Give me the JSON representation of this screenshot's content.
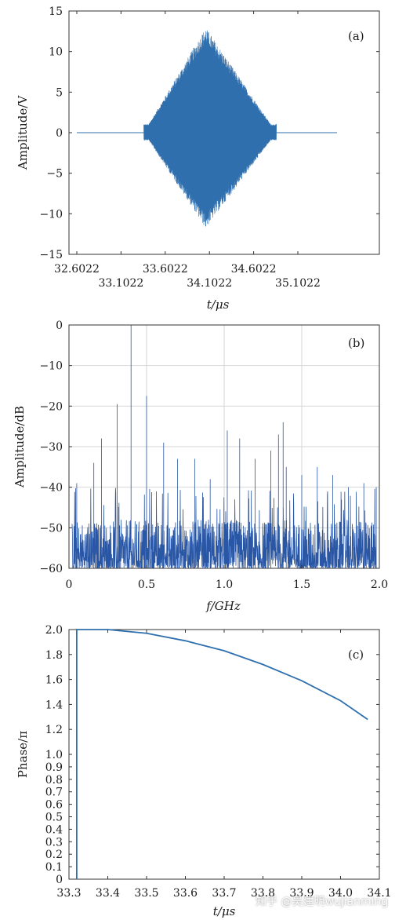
{
  "chart_data": [
    {
      "type": "line",
      "panel_label": "(a)",
      "xlabel": "t/μs",
      "ylabel": "Amplitude/V",
      "xlim": [
        32.6022,
        35.6022
      ],
      "ylim": [
        -15,
        15
      ],
      "xticks_top": [
        "32.6022",
        "33.6022",
        "34.6022"
      ],
      "xticks_bottom": [
        "33.1022",
        "34.1022",
        "35.1022"
      ],
      "yticks": [
        -15,
        -10,
        -5,
        0,
        5,
        10,
        15
      ],
      "grid": false,
      "signal": {
        "t_start": 32.6022,
        "t_end": 35.6022,
        "burst_start": 33.36,
        "burst_end": 34.86,
        "burst_peak_time": 34.06,
        "peak_amplitude": 13.0,
        "trough_amplitude": -11.8
      },
      "color": "#2f6fae"
    },
    {
      "type": "line",
      "panel_label": "(b)",
      "xlabel": "f/GHz",
      "ylabel": "Amplitude/dB",
      "xlim": [
        0,
        2.0
      ],
      "ylim": [
        -60,
        0
      ],
      "xticks": [
        "0",
        "0.5",
        "1.0",
        "1.5",
        "2.0"
      ],
      "yticks": [
        "0",
        "−10",
        "−20",
        "−30",
        "−40",
        "−50",
        "−60"
      ],
      "grid": true,
      "peaks": [
        {
          "f": 0.4,
          "db": 0
        },
        {
          "f": 0.5,
          "db": -17.5
        },
        {
          "f": 0.31,
          "db": -19.5
        },
        {
          "f": 0.21,
          "db": -28
        },
        {
          "f": 0.61,
          "db": -29
        },
        {
          "f": 0.16,
          "db": -34
        },
        {
          "f": 0.7,
          "db": -33
        },
        {
          "f": 0.81,
          "db": -33
        },
        {
          "f": 0.05,
          "db": -39
        },
        {
          "f": 0.91,
          "db": -38
        },
        {
          "f": 1.02,
          "db": -26
        },
        {
          "f": 1.1,
          "db": -28
        },
        {
          "f": 1.2,
          "db": -33
        },
        {
          "f": 1.3,
          "db": -31
        },
        {
          "f": 1.35,
          "db": -27
        },
        {
          "f": 1.38,
          "db": -24
        },
        {
          "f": 1.4,
          "db": -35
        },
        {
          "f": 1.5,
          "db": -37
        },
        {
          "f": 1.6,
          "db": -35
        },
        {
          "f": 1.7,
          "db": -37
        },
        {
          "f": 1.8,
          "db": -40
        },
        {
          "f": 1.9,
          "db": -39
        },
        {
          "f": 1.98,
          "db": -40
        }
      ],
      "noise_floor_db": [
        -60,
        -48
      ],
      "color": "#2a57a5"
    },
    {
      "type": "line",
      "panel_label": "(c)",
      "xlabel": "t/μs",
      "ylabel": "Phase/π",
      "xlim": [
        33.3,
        34.1
      ],
      "ylim": [
        0,
        2.0
      ],
      "xticks": [
        "33.3",
        "33.4",
        "33.5",
        "33.6",
        "33.7",
        "33.8",
        "33.9",
        "34.0",
        "34.1"
      ],
      "yticks": [
        "0",
        "0.1",
        "0.2",
        "0.3",
        "0.4",
        "0.5",
        "0.6",
        "0.7",
        "0.8",
        "0.9",
        "1.0",
        "1.2",
        "1.4",
        "1.6",
        "1.8",
        "2.0"
      ],
      "grid": false,
      "x": [
        33.32,
        33.32,
        33.4,
        33.5,
        33.6,
        33.7,
        33.8,
        33.9,
        34.0,
        34.07
      ],
      "y": [
        0.0,
        2.0,
        2.0,
        1.97,
        1.91,
        1.83,
        1.72,
        1.59,
        1.43,
        1.28
      ],
      "color": "#2f6fae"
    }
  ],
  "watermark": "知乎 @吴建明wujianming"
}
